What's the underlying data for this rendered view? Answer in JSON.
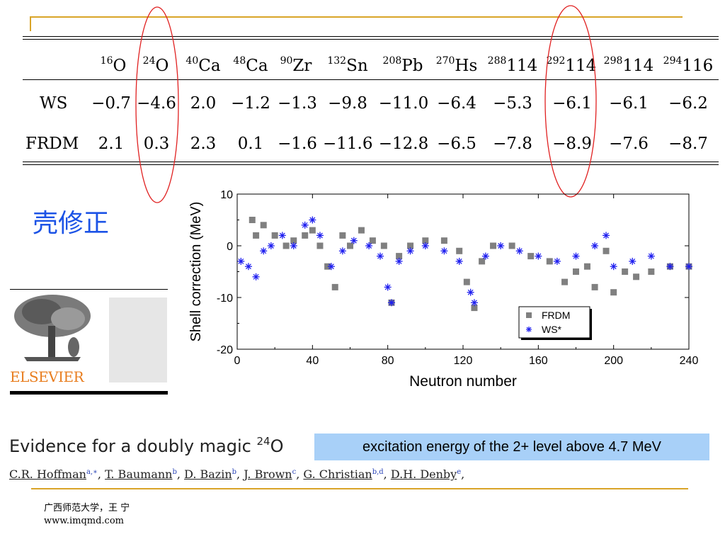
{
  "table": {
    "columns": [
      {
        "mass": "16",
        "symbol": "O"
      },
      {
        "mass": "24",
        "symbol": "O"
      },
      {
        "mass": "40",
        "symbol": "Ca"
      },
      {
        "mass": "48",
        "symbol": "Ca"
      },
      {
        "mass": "90",
        "symbol": "Zr"
      },
      {
        "mass": "132",
        "symbol": "Sn"
      },
      {
        "mass": "208",
        "symbol": "Pb"
      },
      {
        "mass": "270",
        "symbol": "Hs"
      },
      {
        "mass": "288",
        "symbol": "114"
      },
      {
        "mass": "292",
        "symbol": "114"
      },
      {
        "mass": "298",
        "symbol": "114"
      },
      {
        "mass": "294",
        "symbol": "116"
      }
    ],
    "rows": [
      {
        "label": "WS",
        "values": [
          "−0.7",
          "−4.6",
          "2.0",
          "−1.2",
          "−1.3",
          "−9.8",
          "−11.0",
          "−6.4",
          "−5.3",
          "−6.1",
          "−6.1",
          "−6.2"
        ]
      },
      {
        "label": "FRDM",
        "values": [
          "2.1",
          "0.3",
          "2.3",
          "0.1",
          "−1.6",
          "−11.6",
          "−12.8",
          "−6.5",
          "−7.8",
          "−8.9",
          "−7.6",
          "−8.7"
        ]
      }
    ],
    "highlighted_columns": [
      1,
      9
    ]
  },
  "title_cn": "壳修正",
  "chart_data": {
    "type": "scatter",
    "xlabel": "Neutron number",
    "ylabel": "Shell correction (MeV)",
    "xlim": [
      0,
      240
    ],
    "ylim": [
      -20,
      10
    ],
    "xticks": [
      0,
      40,
      80,
      120,
      160,
      200,
      240
    ],
    "yticks": [
      10,
      0,
      -10,
      -20
    ],
    "legend": "bottom-right",
    "series": [
      {
        "name": "FRDM",
        "marker": "square",
        "color": "#808080",
        "x": [
          8,
          10,
          14,
          20,
          26,
          30,
          36,
          40,
          44,
          48,
          52,
          56,
          60,
          66,
          72,
          78,
          82,
          86,
          92,
          100,
          110,
          118,
          122,
          126,
          130,
          136,
          146,
          156,
          166,
          174,
          180,
          186,
          190,
          196,
          200,
          206,
          212,
          220,
          230,
          240
        ],
        "y": [
          5,
          2,
          4,
          2,
          0,
          1,
          2,
          3,
          0,
          -4,
          -8,
          2,
          0,
          3,
          1,
          0,
          -11,
          -2,
          0,
          1,
          1,
          -1,
          -7,
          -12,
          -3,
          0,
          0,
          -2,
          -3,
          -7,
          -5,
          -4,
          -8,
          -1,
          -9,
          -5,
          -6,
          -5,
          -4,
          -4
        ]
      },
      {
        "name": "WS*",
        "marker": "asterisk",
        "color": "#1f1ff0",
        "x": [
          2,
          6,
          10,
          14,
          18,
          24,
          30,
          36,
          40,
          44,
          50,
          56,
          62,
          70,
          76,
          80,
          82,
          86,
          92,
          100,
          110,
          118,
          124,
          126,
          132,
          140,
          150,
          160,
          170,
          180,
          190,
          196,
          200,
          210,
          220,
          230,
          240
        ],
        "y": [
          -3,
          -4,
          -6,
          -1,
          0,
          2,
          0,
          4,
          5,
          2,
          -4,
          -1,
          1,
          0,
          -2,
          -8,
          -11,
          -3,
          -1,
          0,
          -1,
          -3,
          -9,
          -11,
          -2,
          0,
          -1,
          -2,
          -3,
          -2,
          0,
          2,
          -4,
          -3,
          -2,
          -4,
          -4
        ]
      }
    ]
  },
  "paper": {
    "publisher": "ELSEVIER",
    "title_text": "Evidence for a doubly magic ",
    "title_mass": "24",
    "title_symbol": "O",
    "authors": [
      {
        "name": "C.R. Hoffman",
        "aff": "a,∗"
      },
      {
        "name": "T. Baumann",
        "aff": "b"
      },
      {
        "name": "D. Bazin",
        "aff": "b"
      },
      {
        "name": "J. Brown",
        "aff": "c"
      },
      {
        "name": "G. Christian",
        "aff": "b,d"
      },
      {
        "name": "D.H. Denby",
        "aff": "e"
      }
    ]
  },
  "note": "excitation energy of the 2+ level above 4.7 MeV",
  "footer": {
    "institution": "广西师范大学，王 宁",
    "website": "www.imqmd.com"
  },
  "colors": {
    "gold_rule": "#d9a428",
    "blue_title": "#1c53e6",
    "note_box": "#a8d0f8",
    "ellipse": "#e02020",
    "elsevier_orange": "#e87d1e"
  }
}
